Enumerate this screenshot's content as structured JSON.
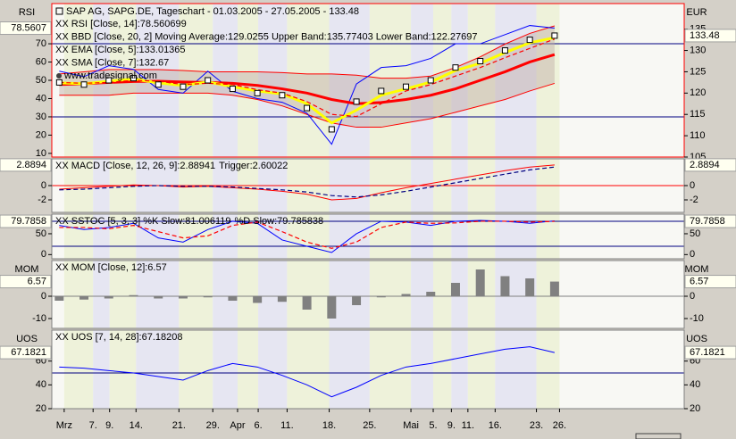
{
  "x_axis": {
    "x": [
      0,
      3,
      6,
      9,
      12,
      15,
      18,
      21,
      24,
      27,
      30,
      33,
      36,
      39,
      42,
      45,
      48,
      51,
      54,
      57,
      60
    ],
    "xlim": [
      -0.9,
      75.7
    ],
    "xticks": [
      {
        "value": 0.6,
        "label": "Mrz"
      },
      {
        "value": 4.1,
        "label": "7."
      },
      {
        "value": 6.1,
        "label": "9."
      },
      {
        "value": 9.3,
        "label": "14."
      },
      {
        "value": 14.5,
        "label": "21."
      },
      {
        "value": 18.6,
        "label": "29."
      },
      {
        "value": 21.6,
        "label": "Apr"
      },
      {
        "value": 24.1,
        "label": "6."
      },
      {
        "value": 27.6,
        "label": "11."
      },
      {
        "value": 32.7,
        "label": "18."
      },
      {
        "value": 37.6,
        "label": "25."
      },
      {
        "value": 42.6,
        "label": "Mai"
      },
      {
        "value": 45.3,
        "label": "5."
      },
      {
        "value": 47.5,
        "label": "9."
      },
      {
        "value": 49.5,
        "label": "11."
      },
      {
        "value": 52.8,
        "label": "16."
      },
      {
        "value": 57.8,
        "label": "23."
      },
      {
        "value": 60.6,
        "label": "26."
      }
    ]
  },
  "chart_data": [
    {
      "type": "line",
      "title": "SAP AG, SAPG.DE, Tageschart - 01.03.2005 - 27.05.2005 - 133.48",
      "source": "www.tradesignal.com",
      "y_title": "RSI",
      "y2_title": "EUR",
      "ylim": [
        8,
        92
      ],
      "yticks": [
        10,
        20,
        30,
        40,
        50,
        60,
        70
      ],
      "y_current": 78.5607,
      "y2lim": [
        105,
        141
      ],
      "y2ticks": [
        105,
        110,
        115,
        120,
        125,
        130,
        135
      ],
      "y2_current": 133.48,
      "hlines": [
        30,
        70
      ],
      "hline_color": "#000080",
      "close": [
        122.5,
        122,
        123,
        123.5,
        122,
        121.5,
        123,
        121,
        120,
        119.5,
        116.5,
        111.5,
        118,
        120.5,
        121.5,
        123,
        126,
        127.5,
        130,
        132.5,
        133.48
      ],
      "series": [
        {
          "name": "XX RSI [Close, 14]:78.560699",
          "color": "#0000ff",
          "axis": "y",
          "style": "thin",
          "values": [
            55,
            52,
            58,
            56,
            45,
            43,
            55,
            44,
            40,
            38,
            32,
            15,
            48,
            57,
            58,
            62,
            70,
            70,
            75,
            80,
            78.56
          ]
        },
        {
          "name": "XX BBD [Close, 20, 2] Moving Average:129.0255 Upper Band:135.77403 Lower Band:122.27697",
          "color": "#ff0000",
          "axis": "y2",
          "style": "thick",
          "values": [
            122,
            122.2,
            122.5,
            122.7,
            122.8,
            122.6,
            122.5,
            122.3,
            121.8,
            121,
            120,
            118.5,
            117.5,
            117.8,
            118.5,
            119.5,
            121,
            123,
            125,
            127.3,
            129.03
          ],
          "upper": [
            124.5,
            125,
            125.5,
            125.5,
            125.5,
            125.3,
            125,
            125,
            125,
            124.8,
            124.5,
            124.5,
            124.2,
            123.5,
            123.5,
            124,
            126,
            128.5,
            131.5,
            134,
            135.77
          ],
          "lower": [
            119.5,
            119.5,
            119.5,
            120,
            120,
            120,
            120,
            119.5,
            118.5,
            117,
            115,
            113,
            112,
            112,
            113,
            114,
            115.5,
            117,
            118.5,
            120.5,
            122.28
          ]
        },
        {
          "name": "XX EMA [Close, 5]:133.01365",
          "color": "#ffff00",
          "axis": "y2",
          "style": "thick",
          "values": [
            122.4,
            122.2,
            122.8,
            123.3,
            122.4,
            121.8,
            122.6,
            121.5,
            120.5,
            119.8,
            117.5,
            113,
            116,
            119.5,
            121,
            122.6,
            125.3,
            127,
            129.5,
            131.8,
            133.01
          ]
        },
        {
          "name": "XX SMA [Close, 7]:132.67",
          "color": "#ff0000",
          "axis": "y2",
          "style": "dashed",
          "values": [
            122.5,
            122.3,
            122.5,
            123,
            122.8,
            122,
            122.3,
            122,
            120.8,
            120,
            118,
            115,
            114.5,
            117.5,
            120.5,
            122,
            124,
            126,
            128.3,
            130.5,
            132.67
          ]
        }
      ]
    },
    {
      "type": "line",
      "ylim": [
        -3.75,
        3.75
      ],
      "yticks": [
        -2,
        0
      ],
      "y_current": 2.8894,
      "hlines": [
        0
      ],
      "hline_color": "#ff0000",
      "series": [
        {
          "name": "XX MACD [Close, 12, 26, 9]:2.88941",
          "color": "#ff0000",
          "style": "thin",
          "values": [
            -0.5,
            -0.3,
            -0.1,
            0.1,
            0,
            -0.2,
            -0.1,
            -0.3,
            -0.5,
            -0.8,
            -1.2,
            -2,
            -1.8,
            -1,
            -0.3,
            0.3,
            0.9,
            1.5,
            2.1,
            2.6,
            2.89
          ]
        },
        {
          "name": "Trigger:2.60022",
          "color": "#000080",
          "style": "dashed",
          "values": [
            -0.6,
            -0.5,
            -0.3,
            -0.1,
            0,
            -0.1,
            -0.1,
            -0.2,
            -0.4,
            -0.6,
            -0.9,
            -1.4,
            -1.6,
            -1.3,
            -0.8,
            -0.2,
            0.4,
            1,
            1.6,
            2.2,
            2.6
          ]
        }
      ]
    },
    {
      "type": "line",
      "ylim": [
        -10,
        97
      ],
      "yticks": [
        0,
        50
      ],
      "y_current": 79.7858,
      "hlines": [
        20,
        80
      ],
      "hline_color": "#000080",
      "series": [
        {
          "name": "XX SSTOC [5, 3, 3] %K Slow:81.006119",
          "color": "#0000ff",
          "style": "thin",
          "values": [
            70,
            60,
            65,
            75,
            40,
            30,
            60,
            80,
            75,
            35,
            20,
            5,
            50,
            80,
            78,
            70,
            80,
            82,
            80,
            75,
            81
          ]
        },
        {
          "name": "%D Slow:79.785838",
          "color": "#ff0000",
          "style": "dashed",
          "values": [
            65,
            65,
            62,
            70,
            55,
            40,
            45,
            70,
            78,
            55,
            30,
            15,
            30,
            65,
            78,
            75,
            76,
            80,
            80,
            78,
            79.79
          ]
        }
      ]
    },
    {
      "type": "bar",
      "y_title": "MOM",
      "ylim": [
        -14.4,
        16
      ],
      "yticks": [
        -10,
        0
      ],
      "y_current": 6.57,
      "hlines": [
        0
      ],
      "hline_color": "#808080",
      "series": [
        {
          "name": "XX MOM [Close, 12]:6.57",
          "color": "#808080",
          "values": [
            -2,
            -1.5,
            -1,
            0.5,
            -1,
            -1,
            -0.5,
            -2,
            -3,
            -2.5,
            -6,
            -10,
            -4,
            -0.5,
            1,
            2,
            6,
            12,
            9,
            8,
            6.57
          ]
        }
      ]
    },
    {
      "type": "line",
      "y_title": "UOS",
      "ylim": [
        20,
        86
      ],
      "yticks": [
        20,
        40,
        60
      ],
      "y_current": 67.1821,
      "hlines": [
        50
      ],
      "hline_color": "#000080",
      "series": [
        {
          "name": "XX UOS [7, 14, 28]:67.18208",
          "color": "#0000ff",
          "style": "thin",
          "values": [
            55,
            54,
            52,
            50,
            47,
            44,
            52,
            58,
            55,
            48,
            40,
            30,
            38,
            48,
            55,
            58,
            62,
            66,
            70,
            72,
            67.18
          ]
        }
      ]
    }
  ]
}
